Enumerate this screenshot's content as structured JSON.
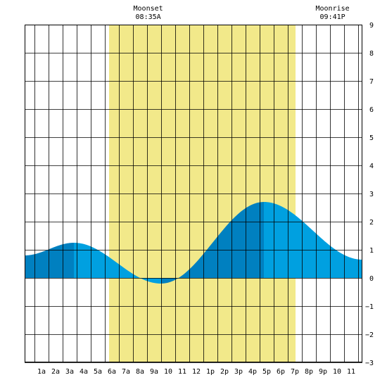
{
  "chart_data": {
    "type": "area",
    "x_tick_labels": [
      "1a",
      "2a",
      "3a",
      "4a",
      "5a",
      "6a",
      "7a",
      "8a",
      "9a",
      "10",
      "11",
      "12",
      "1p",
      "2p",
      "3p",
      "4p",
      "5p",
      "6p",
      "7p",
      "8p",
      "9p",
      "10",
      "11"
    ],
    "y_ticks": [
      -3,
      -2,
      -1,
      0,
      1,
      2,
      3,
      4,
      5,
      6,
      7,
      8,
      9
    ],
    "xlim": [
      -0.2,
      23.8
    ],
    "ylim": [
      -3,
      9
    ],
    "grid": true,
    "daylight": {
      "start_hour": 5.8,
      "end_hour": 19.05,
      "color": "#f2e98a"
    },
    "annotations": [
      {
        "label": "Moonset",
        "time": "08:35A",
        "hour": 8.58
      },
      {
        "label": "Moonrise",
        "time": "09:41P",
        "hour": 21.68
      }
    ],
    "tide": {
      "extrema": [
        {
          "hour": -0.2,
          "height": 0.8
        },
        {
          "hour": 3.3,
          "height": 1.25
        },
        {
          "hour": 9.5,
          "height": -0.2
        },
        {
          "hour": 16.8,
          "height": 2.7
        },
        {
          "hour": 23.8,
          "height": 0.65
        }
      ],
      "dark_color": "#0080c0",
      "light_color": "#00a0e0"
    }
  }
}
